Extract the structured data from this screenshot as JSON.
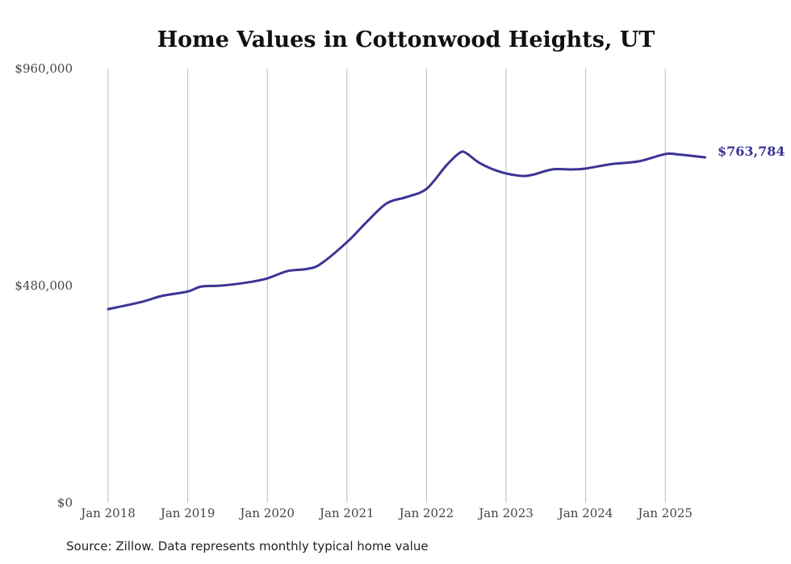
{
  "chart_data": {
    "type": "line",
    "title": "Home Values in Cottonwood Heights, UT",
    "xlabel": "",
    "ylabel": "",
    "ylim": [
      0,
      960000
    ],
    "y_ticks": [
      {
        "value": 0,
        "label": "$0"
      },
      {
        "value": 480000,
        "label": "$480,000"
      },
      {
        "value": 960000,
        "label": "$960,000"
      }
    ],
    "x_ticks": [
      {
        "value": 2018.0,
        "label": "Jan 2018"
      },
      {
        "value": 2019.0,
        "label": "Jan 2019"
      },
      {
        "value": 2020.0,
        "label": "Jan 2020"
      },
      {
        "value": 2021.0,
        "label": "Jan 2021"
      },
      {
        "value": 2022.0,
        "label": "Jan 2022"
      },
      {
        "value": 2023.0,
        "label": "Jan 2023"
      },
      {
        "value": 2024.0,
        "label": "Jan 2024"
      },
      {
        "value": 2025.0,
        "label": "Jan 2025"
      }
    ],
    "xlim": [
      2018.0,
      2025.5
    ],
    "grid": "vertical",
    "series": [
      {
        "name": "Typical home value",
        "color": "#3b3494",
        "x": [
          2018.0,
          2018.42,
          2018.67,
          2019.0,
          2019.17,
          2019.42,
          2019.75,
          2020.0,
          2020.25,
          2020.5,
          2020.67,
          2021.0,
          2021.25,
          2021.5,
          2021.75,
          2022.0,
          2022.25,
          2022.42,
          2022.5,
          2022.67,
          2022.92,
          2023.17,
          2023.33,
          2023.58,
          2023.83,
          2024.0,
          2024.33,
          2024.67,
          2025.0,
          2025.17,
          2025.5
        ],
        "values": [
          428000,
          444000,
          457000,
          467000,
          478000,
          480000,
          487000,
          496000,
          512000,
          517000,
          528000,
          576000,
          621000,
          662000,
          676000,
          694000,
          746000,
          774000,
          773000,
          751000,
          732000,
          723000,
          725000,
          737000,
          737000,
          739000,
          749000,
          755000,
          771000,
          770000,
          763784
        ]
      }
    ],
    "end_label": "$763,784"
  },
  "source": "Source: Zillow. Data represents monthly typical home value"
}
